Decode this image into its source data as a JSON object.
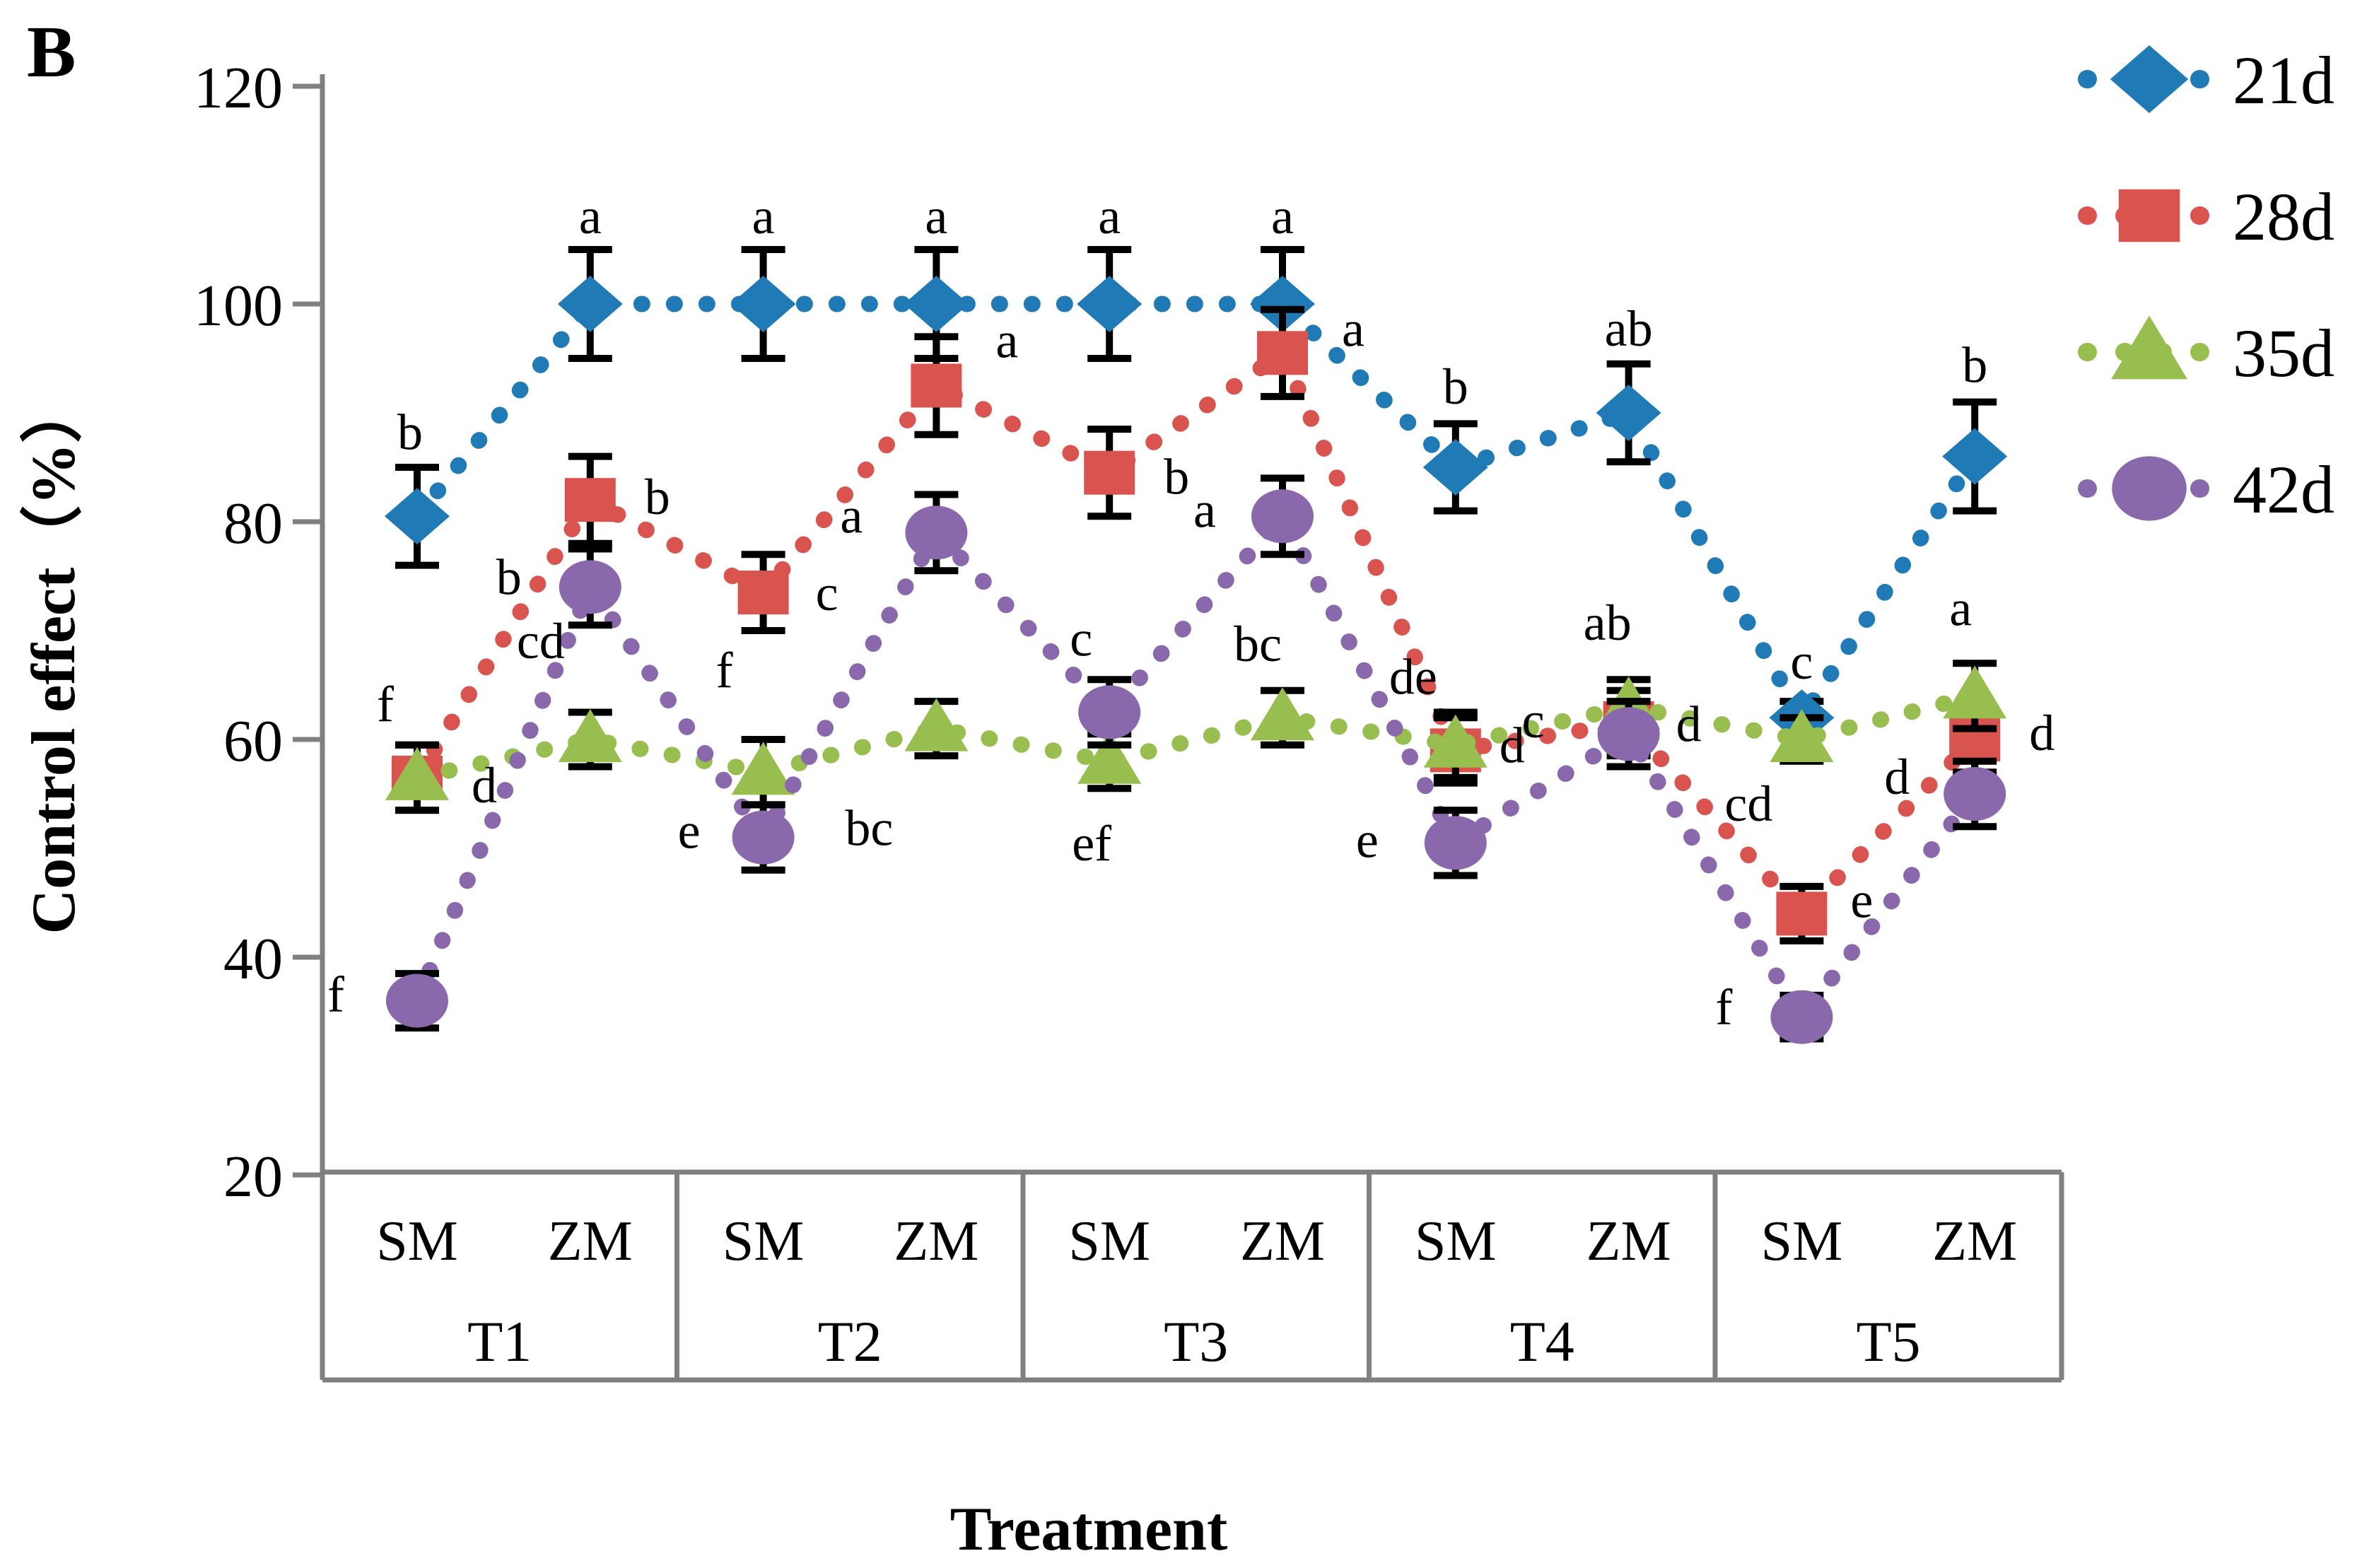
{
  "figure_label": "B",
  "chart_data": {
    "type": "line",
    "line_style": "dotted",
    "title": "",
    "xlabel": "Treatment",
    "ylabel": "Control effect（%）",
    "ylim": [
      20,
      120
    ],
    "y_ticks": [
      120,
      100,
      80,
      60,
      40,
      20
    ],
    "grid": false,
    "legend_position": "top-right",
    "groups": [
      "T1",
      "T2",
      "T3",
      "T4",
      "T5"
    ],
    "subcategories": [
      "SM",
      "ZM"
    ],
    "categories": [
      "T1-SM",
      "T1-ZM",
      "T2-SM",
      "T2-ZM",
      "T3-SM",
      "T3-ZM",
      "T4-SM",
      "T4-ZM",
      "T5-SM",
      "T5-ZM"
    ],
    "axis_color": "#808080",
    "error_bar_color": "#000000",
    "series": [
      {
        "name": "21d",
        "color": "#1F7AB5",
        "marker": "diamond",
        "values": [
          80.5,
          100,
          100,
          100,
          100,
          100,
          85,
          90,
          62,
          86
        ],
        "errors": [
          4.5,
          5,
          5,
          5,
          5,
          5,
          4,
          4.5,
          1.5,
          5
        ],
        "labels": [
          {
            "t": "b",
            "dx": -10,
            "dy": -95
          },
          {
            "t": "a",
            "dx": 0,
            "dy": -100
          },
          {
            "t": "a",
            "dx": 0,
            "dy": -100
          },
          {
            "t": "a",
            "dx": 0,
            "dy": -100
          },
          {
            "t": "a",
            "dx": 0,
            "dy": -100
          },
          {
            "t": "a",
            "dx": 0,
            "dy": -100
          },
          {
            "t": "b",
            "dx": 0,
            "dy": -90
          },
          {
            "t": "ab",
            "dx": 0,
            "dy": -95
          },
          {
            "t": "c",
            "dx": 0,
            "dy": -55
          },
          {
            "t": "b",
            "dx": 0,
            "dy": -105
          }
        ]
      },
      {
        "name": "28d",
        "color": "#D9534F",
        "marker": "square",
        "values": [
          56.5,
          82,
          73.5,
          92.5,
          84.5,
          95.5,
          59,
          61.5,
          44,
          60
        ],
        "errors": [
          3,
          4,
          3.5,
          4.5,
          4,
          4,
          3,
          3,
          2.5,
          3
        ],
        "labels": [
          {
            "t": "f",
            "dx": -45,
            "dy": -80
          },
          {
            "t": "b",
            "dx": 95,
            "dy": 20
          },
          {
            "t": "c",
            "dx": 90,
            "dy": 25
          },
          {
            "t": "a",
            "dx": 100,
            "dy": -40
          },
          {
            "t": "b",
            "dx": 95,
            "dy": 30
          },
          {
            "t": "a",
            "dx": 100,
            "dy": -10
          },
          {
            "t": "de",
            "dx": -60,
            "dy": -80
          },
          {
            "t": "c",
            "dx": -135,
            "dy": 20
          },
          {
            "t": "e",
            "dx": 85,
            "dy": 5
          },
          {
            "t": "d",
            "dx": 95,
            "dy": 15
          }
        ]
      },
      {
        "name": "35d",
        "color": "#98BE4F",
        "marker": "triangle",
        "values": [
          56.5,
          60,
          57,
          61,
          58,
          62,
          59.5,
          63,
          60,
          64
        ],
        "errors": [
          3,
          2.5,
          3,
          2.5,
          2.5,
          2.5,
          3,
          2.5,
          2,
          3
        ],
        "labels": [
          {
            "t": "d",
            "dx": 95,
            "dy": 35
          },
          {
            "t": "cd",
            "dx": -70,
            "dy": -115
          },
          {
            "t": "f",
            "dx": -55,
            "dy": -120
          },
          {
            "t": "bc",
            "dx": -95,
            "dy": 165
          },
          {
            "t": "ef",
            "dx": -25,
            "dy": 140
          },
          {
            "t": "bc",
            "dx": -35,
            "dy": -80
          },
          {
            "t": "d",
            "dx": 80,
            "dy": 25
          },
          {
            "t": "ab",
            "dx": -30,
            "dy": -95
          },
          {
            "t": "cd",
            "dx": -75,
            "dy": 115
          },
          {
            "t": "a",
            "dx": -20,
            "dy": -100
          }
        ]
      },
      {
        "name": "42d",
        "color": "#8968AC",
        "marker": "circle",
        "values": [
          36,
          74,
          51,
          79,
          62.5,
          80.5,
          50.5,
          60.5,
          34.5,
          55
        ],
        "errors": [
          2.5,
          3.5,
          3,
          3.5,
          3,
          3.5,
          3,
          3,
          2,
          3
        ],
        "labels": [
          {
            "t": "f",
            "dx": -115,
            "dy": 15
          },
          {
            "t": "b",
            "dx": -115,
            "dy": 10
          },
          {
            "t": "e",
            "dx": -105,
            "dy": 15
          },
          {
            "t": "a",
            "dx": -120,
            "dy": 0
          },
          {
            "t": "c",
            "dx": -40,
            "dy": -80
          },
          {
            "t": "a",
            "dx": -110,
            "dy": 15
          },
          {
            "t": "e",
            "dx": -125,
            "dy": 20
          },
          {
            "t": "d",
            "dx": 85,
            "dy": 10
          },
          {
            "t": "f",
            "dx": -110,
            "dy": 10
          },
          {
            "t": "d",
            "dx": -110,
            "dy": 0
          }
        ]
      }
    ]
  }
}
